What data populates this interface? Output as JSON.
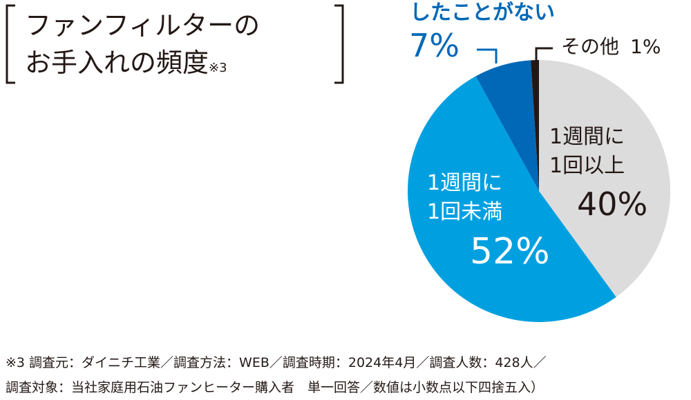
{
  "chart_data": {
    "type": "pie",
    "title": "ファンフィルターの\nお手入れの頻度",
    "title_note": "※3",
    "categories": [
      "1週間に\n1回以上",
      "1週間に\n1回未満",
      "したことがない",
      "その他"
    ],
    "values": [
      40,
      52,
      7,
      1
    ],
    "value_labels": [
      "40%",
      "52%",
      "7%",
      "1%"
    ],
    "colors": [
      "#dcdcdc",
      "#00a0e0",
      "#0068b7",
      "#231815"
    ],
    "footnote": "※3 調査元：ダイニチ工業／調査方法：WEB／調査時期：2024年4月／調査人数：428人／\n調査対象：当社家庭用石油ファンヒーター購入者　単一回答／数値は小数点以下四捨五入）"
  }
}
